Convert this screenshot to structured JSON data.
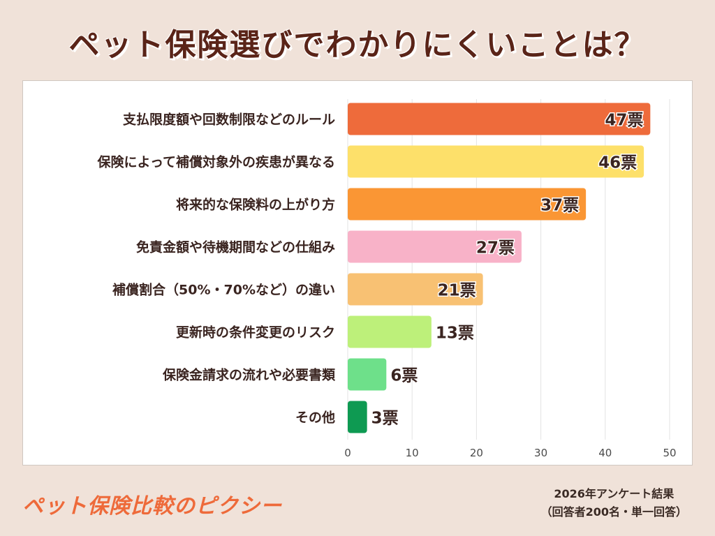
{
  "title": "ペット保険選びでわかりにくいことは？",
  "brand": "ペット保険比較のピクシー",
  "survey": {
    "line1": "2026年アンケート結果",
    "line2": "（回答者200名・単一回答）"
  },
  "colors": {
    "background": "#f0e2d9",
    "title": "#5a2418",
    "brand": "#ee6a3a"
  },
  "chart_data": {
    "type": "bar",
    "orientation": "horizontal",
    "categories": [
      "支払限度額や回数制限などのルール",
      "保険によって補償対象外の疾患が異なる",
      "将来的な保険料の上がり方",
      "免責金額や待機期間などの仕組み",
      "補償割合（50%・70%など）の違い",
      "更新時の条件変更のリスク",
      "保険金請求の流れや必要書類",
      "その他"
    ],
    "values": [
      47,
      46,
      37,
      27,
      21,
      13,
      6,
      3
    ],
    "value_labels": [
      "47票",
      "46票",
      "37票",
      "27票",
      "21票",
      "13票",
      "6票",
      "3票"
    ],
    "bar_colors": [
      "#ee6b3b",
      "#fde06a",
      "#fa9634",
      "#f8b2c8",
      "#f8c173",
      "#bdf07a",
      "#6ee08a",
      "#0e9a52"
    ],
    "xlim": [
      0,
      50
    ],
    "x_ticks": [
      0,
      10,
      20,
      30,
      40,
      50
    ],
    "grid": true
  }
}
